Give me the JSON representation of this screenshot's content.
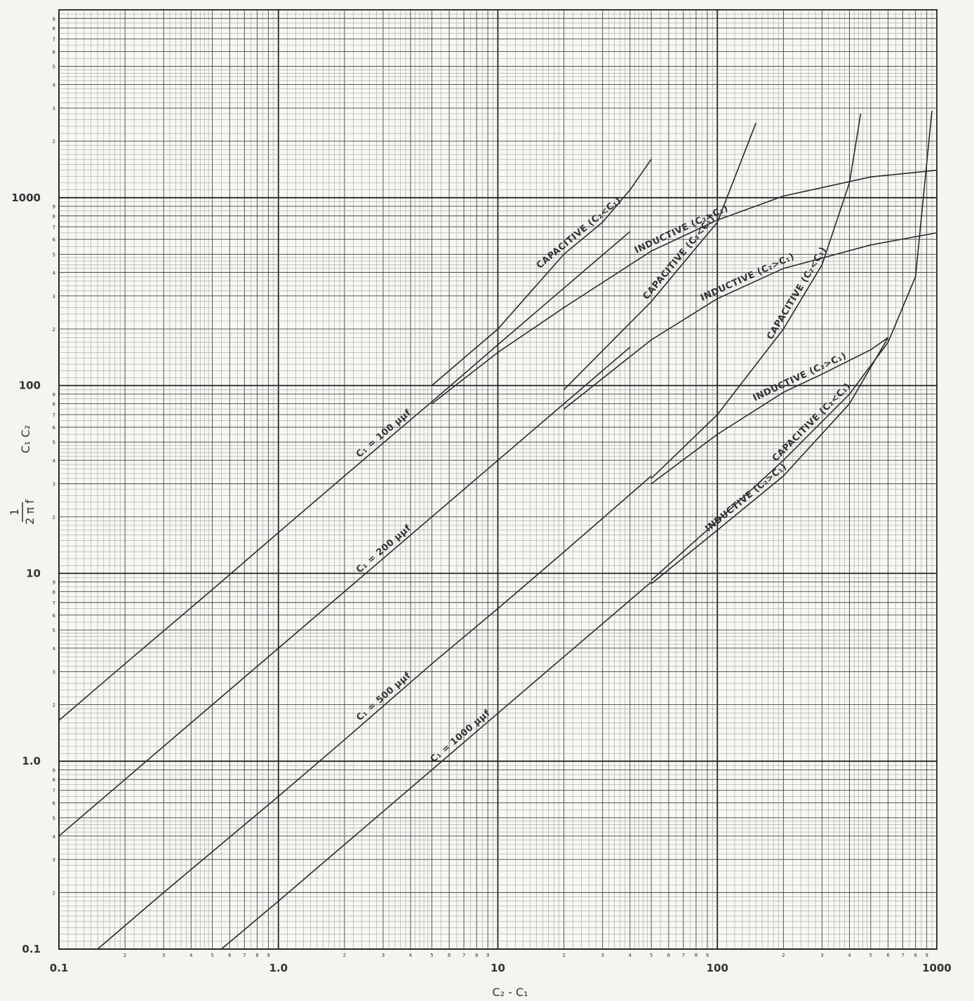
{
  "chart_data": {
    "type": "line",
    "scale": "log-log",
    "xlim": [
      0.1,
      1000
    ],
    "ylim": [
      0.1,
      10000
    ],
    "grid": true,
    "xlabel": "C₂ - C₁",
    "ylabel_lines": [
      "1",
      "2 π f",
      "C₁  C₂"
    ],
    "x_major_labels": [
      "0.1",
      "1.0",
      "10",
      "100",
      "1000"
    ],
    "y_major_labels": [
      "0.1",
      "1.0",
      "10",
      "100",
      "1000"
    ],
    "series": [
      {
        "label": "C₁ = 100 μμf",
        "kind": "base",
        "x": [
          0.1,
          0.2,
          0.5,
          1,
          2,
          5,
          10,
          20,
          40
        ],
        "y": [
          1.65,
          3.3,
          8.2,
          16.5,
          33,
          82,
          165,
          330,
          660
        ]
      },
      {
        "label": "CAPACITIVE (C₂<C₁)",
        "x": [
          5,
          10,
          20,
          30,
          40,
          50
        ],
        "y": [
          100,
          200,
          500,
          740,
          1100,
          1600
        ]
      },
      {
        "label": "INDUCTIVE (C₂>C₁)",
        "x": [
          5,
          10,
          20,
          50,
          100,
          200,
          500,
          1000
        ],
        "y": [
          80,
          150,
          260,
          520,
          760,
          1020,
          1290,
          1400
        ]
      },
      {
        "label": "C₁ = 200 μμf",
        "kind": "base",
        "x": [
          0.1,
          0.2,
          0.5,
          1,
          2,
          5,
          10,
          20,
          40
        ],
        "y": [
          0.4,
          0.8,
          2.0,
          4.0,
          8.0,
          20,
          40,
          80,
          160
        ]
      },
      {
        "label": "CAPACITIVE (C₂<C₁)",
        "x": [
          20,
          50,
          100,
          150
        ],
        "y": [
          95,
          280,
          740,
          2500
        ]
      },
      {
        "label": "INDUCTIVE (C₂>C₁)",
        "x": [
          20,
          50,
          100,
          200,
          500,
          1000
        ],
        "y": [
          75,
          175,
          290,
          420,
          560,
          650
        ]
      },
      {
        "label": "C₁ = 500 μμf",
        "kind": "base",
        "x": [
          0.15,
          0.3,
          0.5,
          1,
          2,
          5,
          10,
          20,
          50
        ],
        "y": [
          0.1,
          0.2,
          0.33,
          0.65,
          1.3,
          3.3,
          6.5,
          13,
          33
        ]
      },
      {
        "label": "CAPACITIVE (C₂<C₁)",
        "x": [
          50,
          100,
          200,
          300,
          400,
          450
        ],
        "y": [
          32,
          70,
          200,
          440,
          1200,
          2800
        ]
      },
      {
        "label": "INDUCTIVE (C₂>C₁)",
        "x": [
          50,
          100,
          200,
          300,
          500,
          600
        ],
        "y": [
          30,
          55,
          92,
          115,
          155,
          180
        ]
      },
      {
        "label": "C₁ = 1000 μμf",
        "kind": "base",
        "x": [
          0.55,
          1,
          2,
          5,
          10,
          20,
          50
        ],
        "y": [
          0.1,
          0.18,
          0.36,
          0.9,
          1.8,
          3.6,
          9
        ]
      },
      {
        "label": "CAPACITIVE (C₂<C₁)",
        "x": [
          50,
          100,
          200,
          400,
          600,
          800,
          950
        ],
        "y": [
          9.2,
          19,
          40,
          90,
          170,
          380,
          2900
        ]
      },
      {
        "label": "INDUCTIVE (C₂>C₁)",
        "x": [
          50,
          100,
          200,
          400,
          600
        ],
        "y": [
          8.8,
          17,
          33,
          80,
          180
        ]
      }
    ]
  }
}
